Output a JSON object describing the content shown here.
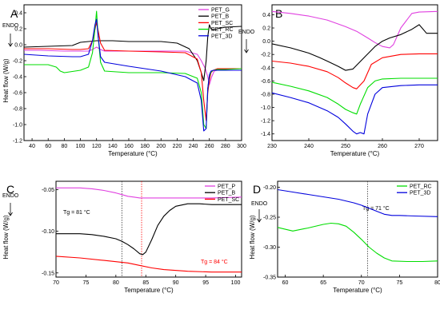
{
  "chart_data": [
    {
      "panel": "A",
      "type": "line",
      "xlabel": "Temperature (°C)",
      "ylabel": "Heat flow (W/g)",
      "endo_label": "ENDO",
      "xlim": [
        30,
        300
      ],
      "ylim": [
        -1.2,
        0.5
      ],
      "xticks": [
        40,
        60,
        80,
        100,
        120,
        140,
        160,
        180,
        200,
        220,
        240,
        260,
        280,
        300
      ],
      "yticks": [
        -1.2,
        -1.0,
        -0.8,
        -0.6,
        -0.4,
        -0.2,
        0.0,
        0.2,
        0.4
      ],
      "ytick_labels": [
        "-1.2",
        "-1.0",
        "-0.8",
        "-0.6",
        "-0.4",
        "-0.2",
        "0.0",
        "0.2",
        "0.4"
      ],
      "legend_position": "top-right",
      "series": [
        {
          "name": "PET_G",
          "color": "#e040e0",
          "x": [
            30,
            50,
            80,
            100,
            110,
            115,
            120,
            125,
            130,
            160,
            200,
            230,
            245,
            250,
            255,
            258,
            260,
            263,
            266,
            270,
            280,
            300
          ],
          "y": [
            -0.07,
            -0.07,
            -0.08,
            -0.08,
            -0.08,
            -0.06,
            -0.03,
            -0.06,
            -0.08,
            -0.08,
            -0.08,
            -0.08,
            -0.12,
            -0.2,
            -0.3,
            -0.4,
            -0.5,
            -0.4,
            -0.33,
            -0.32,
            -0.3,
            -0.3
          ]
        },
        {
          "name": "PET_B",
          "color": "#000000",
          "x": [
            30,
            60,
            90,
            100,
            120,
            140,
            160,
            200,
            220,
            235,
            245,
            250,
            253,
            256,
            258,
            260,
            262,
            265,
            270,
            280,
            300
          ],
          "y": [
            -0.03,
            -0.02,
            -0.01,
            0.03,
            0.05,
            0.05,
            0.04,
            0.04,
            0.02,
            -0.05,
            -0.2,
            -0.35,
            -0.45,
            -0.2,
            0.1,
            0.25,
            0.2,
            0.18,
            0.2,
            0.22,
            0.23
          ]
        },
        {
          "name": "PET_SC",
          "color": "#ff0000",
          "x": [
            30,
            60,
            90,
            100,
            110,
            115,
            120,
            125,
            130,
            160,
            200,
            230,
            245,
            250,
            253,
            256,
            258,
            260,
            262,
            265,
            270,
            280,
            300
          ],
          "y": [
            -0.05,
            -0.05,
            -0.06,
            -0.06,
            -0.05,
            0.05,
            0.28,
            0.02,
            -0.07,
            -0.08,
            -0.09,
            -0.1,
            -0.18,
            -0.35,
            -0.7,
            -0.95,
            -0.6,
            -0.45,
            -0.35,
            -0.32,
            -0.3,
            -0.3,
            -0.3
          ]
        },
        {
          "name": "PET_RC",
          "color": "#00dd00",
          "x": [
            30,
            60,
            70,
            75,
            80,
            100,
            110,
            115,
            118,
            120,
            122,
            125,
            130,
            160,
            200,
            230,
            245,
            250,
            253,
            256,
            258,
            260,
            262,
            265,
            270,
            280,
            300
          ],
          "y": [
            -0.25,
            -0.25,
            -0.28,
            -0.33,
            -0.35,
            -0.32,
            -0.28,
            -0.1,
            0.2,
            0.42,
            0.1,
            -0.22,
            -0.33,
            -0.35,
            -0.35,
            -0.36,
            -0.42,
            -0.6,
            -1.0,
            -1.05,
            -0.55,
            -0.4,
            -0.34,
            -0.32,
            -0.31,
            -0.31,
            -0.3
          ]
        },
        {
          "name": "PET_3D",
          "color": "#0000dd",
          "x": [
            30,
            60,
            90,
            100,
            110,
            115,
            118,
            120,
            122,
            125,
            130,
            160,
            200,
            230,
            245,
            250,
            253,
            256,
            258,
            260,
            262,
            265,
            270,
            280,
            300
          ],
          "y": [
            -0.12,
            -0.14,
            -0.15,
            -0.15,
            -0.12,
            0.05,
            0.25,
            0.32,
            0.1,
            -0.15,
            -0.22,
            -0.27,
            -0.33,
            -0.4,
            -0.48,
            -0.7,
            -1.08,
            -1.05,
            -0.55,
            -0.38,
            -0.33,
            -0.32,
            -0.32,
            -0.32,
            -0.32
          ]
        }
      ]
    },
    {
      "panel": "B",
      "type": "line",
      "xlabel": "Temperature (°C)",
      "ylabel": "",
      "endo_label": "ENDO",
      "xlim": [
        230,
        275
      ],
      "ylim": [
        -1.5,
        0.55
      ],
      "xticks": [
        230,
        240,
        250,
        260,
        270
      ],
      "yticks": [
        -1.4,
        -1.2,
        -1.0,
        -0.8,
        -0.6,
        -0.4,
        -0.2,
        0.0,
        0.2,
        0.4
      ],
      "ytick_labels": [
        "-1.4",
        "-1.2",
        "-1.0",
        "-0.8",
        "-0.6",
        "-0.4",
        "-0.2",
        "0.0",
        "0.2",
        "0.4"
      ],
      "series": [
        {
          "color": "#e040e0",
          "x": [
            230,
            235,
            240,
            245,
            250,
            253,
            256,
            258,
            260,
            262,
            263,
            265,
            268,
            270,
            275
          ],
          "y": [
            0.45,
            0.42,
            0.38,
            0.32,
            0.22,
            0.15,
            0.05,
            -0.02,
            -0.08,
            -0.1,
            -0.05,
            0.2,
            0.42,
            0.44,
            0.45
          ]
        },
        {
          "color": "#000000",
          "x": [
            230,
            235,
            240,
            243,
            245,
            248,
            250,
            252,
            255,
            258,
            260,
            262,
            265,
            268,
            270,
            272,
            275
          ],
          "y": [
            -0.04,
            -0.1,
            -0.18,
            -0.25,
            -0.3,
            -0.38,
            -0.44,
            -0.42,
            -0.25,
            -0.08,
            0.0,
            0.05,
            0.1,
            0.18,
            0.25,
            0.12,
            0.12
          ]
        },
        {
          "color": "#ff0000",
          "x": [
            230,
            235,
            240,
            245,
            248,
            250,
            252,
            253,
            255,
            257,
            260,
            265,
            270,
            275
          ],
          "y": [
            -0.3,
            -0.33,
            -0.38,
            -0.46,
            -0.55,
            -0.63,
            -0.7,
            -0.72,
            -0.6,
            -0.35,
            -0.25,
            -0.2,
            -0.19,
            -0.19
          ]
        },
        {
          "color": "#00dd00",
          "x": [
            230,
            235,
            240,
            245,
            248,
            250,
            252,
            253,
            254,
            256,
            258,
            260,
            265,
            270,
            275
          ],
          "y": [
            -0.62,
            -0.68,
            -0.75,
            -0.85,
            -0.95,
            -1.03,
            -1.08,
            -1.1,
            -0.95,
            -0.7,
            -0.6,
            -0.57,
            -0.56,
            -0.56,
            -0.56
          ]
        },
        {
          "color": "#0000dd",
          "x": [
            230,
            235,
            240,
            245,
            248,
            250,
            252,
            253,
            254,
            255,
            256,
            258,
            260,
            265,
            270,
            275
          ],
          "y": [
            -0.78,
            -0.85,
            -0.93,
            -1.05,
            -1.15,
            -1.25,
            -1.36,
            -1.4,
            -1.38,
            -1.4,
            -1.1,
            -0.8,
            -0.7,
            -0.67,
            -0.66,
            -0.66
          ]
        }
      ]
    },
    {
      "panel": "C",
      "type": "line",
      "xlabel": "Temperature (°C)",
      "ylabel": "Heat flow (W/g)",
      "endo_label": "ENDO",
      "xlim": [
        70,
        101
      ],
      "ylim": [
        -0.155,
        -0.04
      ],
      "xticks": [
        70,
        75,
        80,
        85,
        90,
        95,
        100
      ],
      "yticks": [
        -0.15,
        -0.1,
        -0.05
      ],
      "ytick_labels": [
        "-0.15",
        "-0.10",
        "-0.05"
      ],
      "legend_position": "top-right",
      "annotations": [
        {
          "text": "Tg = 81 °C",
          "x": 81,
          "color": "#000000"
        },
        {
          "text": "Tg = 84 °C",
          "x": 84.3,
          "color": "#ff0000"
        }
      ],
      "series": [
        {
          "name": "PET_P",
          "color": "#e040e0",
          "x": [
            70,
            74,
            76,
            78,
            80,
            81,
            82,
            83,
            84,
            86,
            88,
            92,
            96,
            101
          ],
          "y": [
            -0.048,
            -0.048,
            -0.049,
            -0.051,
            -0.054,
            -0.056,
            -0.058,
            -0.059,
            -0.06,
            -0.06,
            -0.06,
            -0.06,
            -0.06,
            -0.059
          ]
        },
        {
          "name": "PET_B",
          "color": "#000000",
          "x": [
            70,
            74,
            76,
            78,
            80,
            81,
            82,
            83,
            84,
            84.5,
            85,
            86,
            87,
            88,
            89,
            90,
            92,
            94,
            96,
            98,
            101
          ],
          "y": [
            -0.103,
            -0.103,
            -0.104,
            -0.106,
            -0.109,
            -0.112,
            -0.116,
            -0.121,
            -0.127,
            -0.128,
            -0.125,
            -0.11,
            -0.093,
            -0.082,
            -0.075,
            -0.07,
            -0.067,
            -0.067,
            -0.068,
            -0.068,
            -0.068
          ]
        },
        {
          "name": "PET_SC",
          "color": "#ff0000",
          "x": [
            70,
            74,
            78,
            82,
            84,
            86,
            88,
            92,
            96,
            101
          ],
          "y": [
            -0.13,
            -0.132,
            -0.135,
            -0.138,
            -0.141,
            -0.144,
            -0.146,
            -0.148,
            -0.149,
            -0.149
          ]
        }
      ]
    },
    {
      "panel": "D",
      "type": "line",
      "xlabel": "Temperature (°C)",
      "ylabel": "Heat flow (W/g)",
      "endo_label": "ENDO",
      "xlim": [
        59,
        80
      ],
      "ylim": [
        -0.35,
        -0.19
      ],
      "xticks": [
        60,
        65,
        70,
        75,
        80
      ],
      "yticks": [
        -0.35,
        -0.3,
        -0.25,
        -0.2
      ],
      "ytick_labels": [
        "-0.35",
        "-0.30",
        "-0.25",
        "-0.20"
      ],
      "legend_position": "top-right",
      "annotations": [
        {
          "text": "Tg = 71 °C",
          "x": 70.8,
          "color": "#000000"
        }
      ],
      "series": [
        {
          "name": "PET_RC",
          "color": "#00dd00",
          "x": [
            59,
            61,
            63,
            65,
            66,
            67,
            68,
            69,
            70,
            71,
            72,
            73,
            74,
            76,
            78,
            80
          ],
          "y": [
            -0.267,
            -0.273,
            -0.268,
            -0.262,
            -0.26,
            -0.261,
            -0.265,
            -0.275,
            -0.287,
            -0.3,
            -0.31,
            -0.318,
            -0.323,
            -0.324,
            -0.324,
            -0.323
          ]
        },
        {
          "name": "PET_3D",
          "color": "#0000dd",
          "x": [
            59,
            61,
            63,
            65,
            67,
            69,
            70,
            71,
            72,
            73,
            74,
            75,
            77,
            80
          ],
          "y": [
            -0.204,
            -0.208,
            -0.212,
            -0.216,
            -0.22,
            -0.226,
            -0.23,
            -0.235,
            -0.24,
            -0.245,
            -0.247,
            -0.247,
            -0.248,
            -0.249
          ]
        }
      ]
    }
  ],
  "layout_note": ""
}
